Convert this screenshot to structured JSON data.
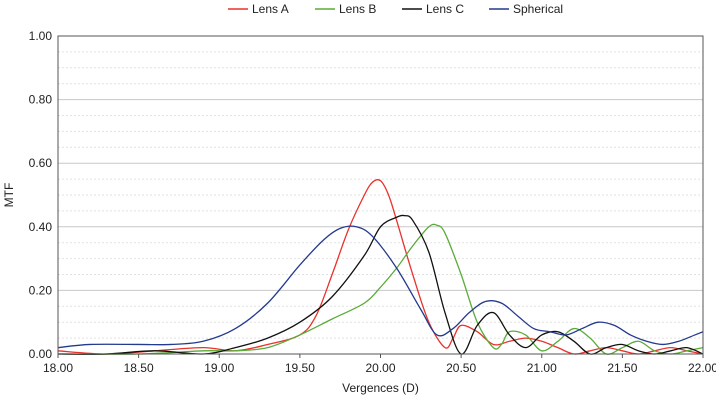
{
  "chart_data": {
    "type": "line",
    "title": "",
    "xlabel": "Vergences (D)",
    "ylabel": "MTF",
    "xlim": [
      18.0,
      22.0
    ],
    "ylim": [
      0.0,
      1.0
    ],
    "x_ticks": [
      "18.00",
      "18.50",
      "19.00",
      "19.50",
      "20.00",
      "20.50",
      "21.00",
      "21.50",
      "22.00"
    ],
    "y_ticks": [
      "0.00",
      "0.20",
      "0.40",
      "0.60",
      "0.80",
      "1.00"
    ],
    "grid": true,
    "legend_position": "top",
    "series": [
      {
        "name": "Lens A",
        "color": "#e8322c",
        "x": [
          18.0,
          18.3,
          18.6,
          18.9,
          19.1,
          19.3,
          19.5,
          19.6,
          19.7,
          19.8,
          19.9,
          19.95,
          20.0,
          20.05,
          20.1,
          20.2,
          20.3,
          20.4,
          20.45,
          20.5,
          20.6,
          20.7,
          20.8,
          20.9,
          21.0,
          21.1,
          21.2,
          21.3,
          21.4,
          21.5,
          21.6,
          21.7,
          21.8,
          21.9,
          22.0
        ],
        "y": [
          0.01,
          0.0,
          0.01,
          0.02,
          0.01,
          0.03,
          0.06,
          0.12,
          0.25,
          0.39,
          0.5,
          0.54,
          0.545,
          0.5,
          0.42,
          0.25,
          0.1,
          0.02,
          0.05,
          0.09,
          0.07,
          0.03,
          0.04,
          0.05,
          0.04,
          0.02,
          0.0,
          0.01,
          0.02,
          0.01,
          0.0,
          0.01,
          0.02,
          0.01,
          0.0
        ]
      },
      {
        "name": "Lens B",
        "color": "#5aab38",
        "x": [
          18.0,
          18.5,
          18.9,
          19.1,
          19.3,
          19.5,
          19.7,
          19.9,
          20.0,
          20.1,
          20.2,
          20.3,
          20.35,
          20.4,
          20.5,
          20.6,
          20.7,
          20.75,
          20.8,
          20.9,
          21.0,
          21.1,
          21.2,
          21.3,
          21.4,
          21.5,
          21.6,
          21.7,
          21.8,
          21.9,
          22.0
        ],
        "y": [
          0.0,
          0.0,
          0.01,
          0.01,
          0.02,
          0.06,
          0.11,
          0.16,
          0.21,
          0.27,
          0.34,
          0.4,
          0.405,
          0.38,
          0.25,
          0.1,
          0.02,
          0.03,
          0.07,
          0.06,
          0.01,
          0.04,
          0.08,
          0.05,
          0.0,
          0.02,
          0.04,
          0.01,
          0.0,
          0.01,
          0.02
        ]
      },
      {
        "name": "Lens C",
        "color": "#111111",
        "x": [
          18.0,
          18.3,
          18.6,
          18.9,
          19.1,
          19.3,
          19.5,
          19.7,
          19.9,
          20.0,
          20.1,
          20.15,
          20.2,
          20.3,
          20.4,
          20.5,
          20.6,
          20.7,
          20.8,
          20.9,
          21.0,
          21.1,
          21.2,
          21.3,
          21.4,
          21.5,
          21.6,
          21.7,
          21.8,
          21.9,
          22.0
        ],
        "y": [
          0.0,
          0.0,
          0.01,
          0.0,
          0.02,
          0.05,
          0.1,
          0.18,
          0.31,
          0.4,
          0.43,
          0.435,
          0.42,
          0.32,
          0.13,
          0.0,
          0.09,
          0.13,
          0.06,
          0.02,
          0.06,
          0.07,
          0.04,
          0.0,
          0.02,
          0.03,
          0.01,
          0.0,
          0.01,
          0.02,
          0.0
        ]
      },
      {
        "name": "Spherical",
        "color": "#233a8e",
        "x": [
          18.0,
          18.2,
          18.5,
          18.7,
          18.9,
          19.1,
          19.3,
          19.5,
          19.65,
          19.75,
          19.85,
          19.95,
          20.1,
          20.25,
          20.35,
          20.45,
          20.55,
          20.65,
          20.75,
          20.85,
          20.95,
          21.05,
          21.15,
          21.25,
          21.35,
          21.45,
          21.55,
          21.65,
          21.75,
          21.85,
          21.95,
          22.0
        ],
        "y": [
          0.02,
          0.03,
          0.03,
          0.03,
          0.04,
          0.08,
          0.16,
          0.28,
          0.36,
          0.395,
          0.4,
          0.37,
          0.27,
          0.14,
          0.06,
          0.08,
          0.13,
          0.165,
          0.16,
          0.12,
          0.08,
          0.07,
          0.06,
          0.08,
          0.1,
          0.09,
          0.06,
          0.04,
          0.03,
          0.04,
          0.06,
          0.07
        ]
      }
    ]
  }
}
